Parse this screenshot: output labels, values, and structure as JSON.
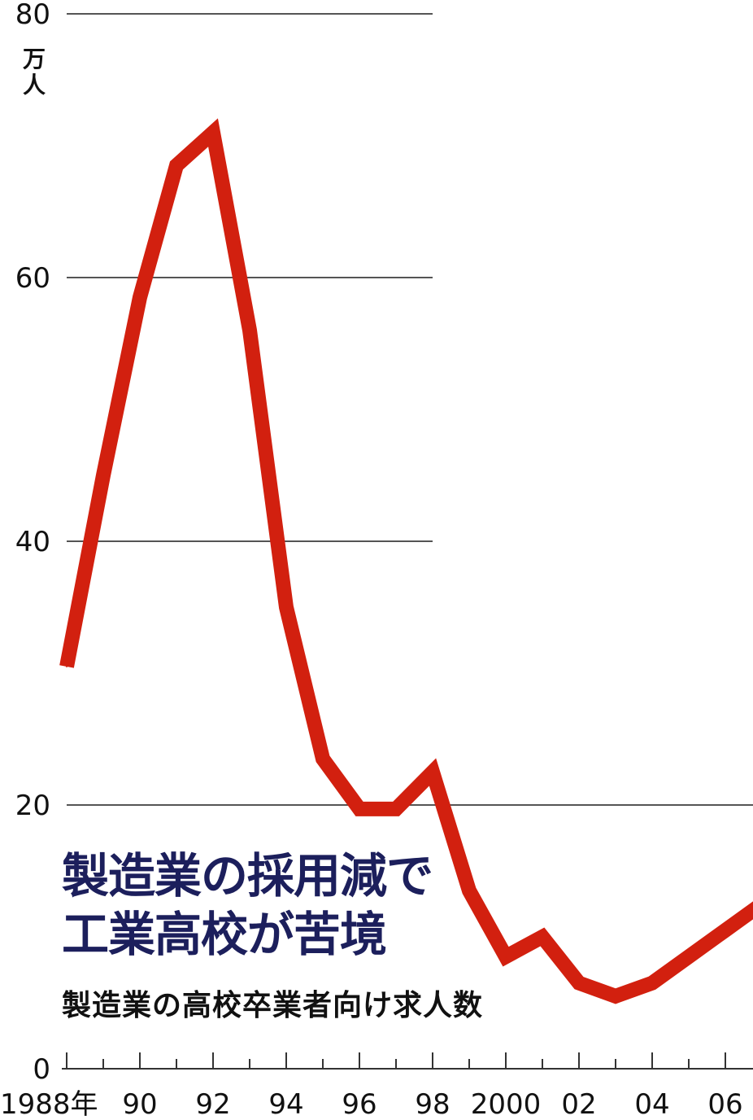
{
  "headline": [
    "製造業の採用減で",
    "工業高校が苦境"
  ],
  "chart_data": {
    "type": "line",
    "title": "製造業の高校卒業者向け求人数",
    "ylabel": "万人",
    "ylim": [
      0,
      80
    ],
    "xlim": [
      1988,
      2007
    ],
    "y_ticks": [
      0,
      20,
      40,
      60,
      80
    ],
    "x_ticks": [
      {
        "year": 1988,
        "label": "1988年"
      },
      {
        "year": 1990,
        "label": "90"
      },
      {
        "year": 1992,
        "label": "92"
      },
      {
        "year": 1994,
        "label": "94"
      },
      {
        "year": 1996,
        "label": "96"
      },
      {
        "year": 1998,
        "label": "98"
      },
      {
        "year": 2000,
        "label": "2000"
      },
      {
        "year": 2002,
        "label": "02"
      },
      {
        "year": 2004,
        "label": "04"
      },
      {
        "year": 2006,
        "label": "06"
      }
    ],
    "grid": true,
    "series_color": "#d2200f",
    "series": [
      {
        "x": [
          1988,
          1989,
          1990,
          1991,
          1992,
          1993,
          1994,
          1995,
          1996,
          1997,
          1998,
          1999,
          2000,
          2001,
          2002,
          2003,
          2004,
          2005,
          2006,
          2007
        ],
        "values": [
          30.5,
          45,
          58.5,
          68.5,
          71,
          56,
          35,
          23.5,
          19.7,
          19.7,
          22.5,
          13.5,
          8.5,
          10,
          6.5,
          5.5,
          6.5,
          8.5,
          10.5,
          12.5
        ]
      }
    ]
  }
}
